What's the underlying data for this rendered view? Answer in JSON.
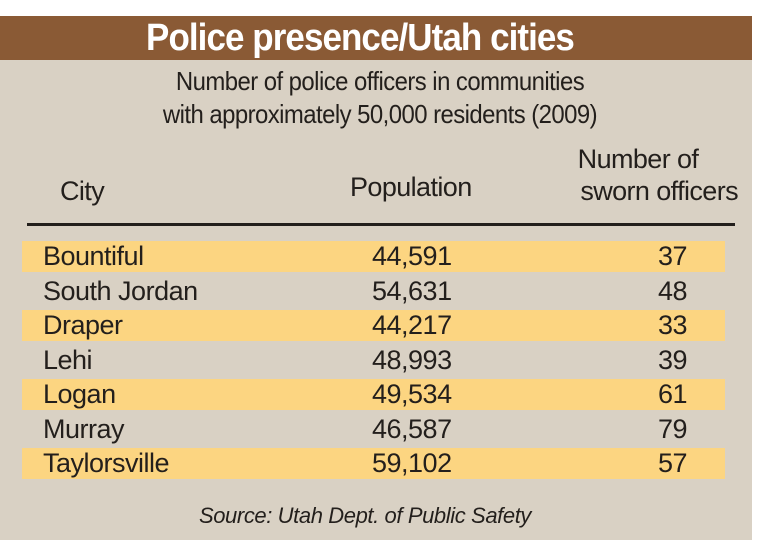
{
  "chart_data": {
    "type": "table",
    "title": "Police presence/Utah cities",
    "subtitle": [
      "Number of police officers in communities",
      "with approximately 50,000 residents (2009)"
    ],
    "columns": {
      "city": "City",
      "population": "Population",
      "officers": [
        "Number of",
        "sworn officers"
      ]
    },
    "rows": [
      {
        "city": "Bountiful",
        "population": "44,591",
        "officers": "37"
      },
      {
        "city": "South Jordan",
        "population": "54,631",
        "officers": "48"
      },
      {
        "city": "Draper",
        "population": "44,217",
        "officers": "33"
      },
      {
        "city": "Lehi",
        "population": "48,993",
        "officers": "39"
      },
      {
        "city": "Logan",
        "population": "49,534",
        "officers": "61"
      },
      {
        "city": "Murray",
        "population": "46,587",
        "officers": "79"
      },
      {
        "city": "Taylorsville",
        "population": "59,102",
        "officers": "57"
      }
    ],
    "source": "Source: Utah Dept. of Public Safety",
    "colors": {
      "header": "#8a5a35",
      "background": "#d9d1c4",
      "highlight": "#fcd581"
    }
  }
}
